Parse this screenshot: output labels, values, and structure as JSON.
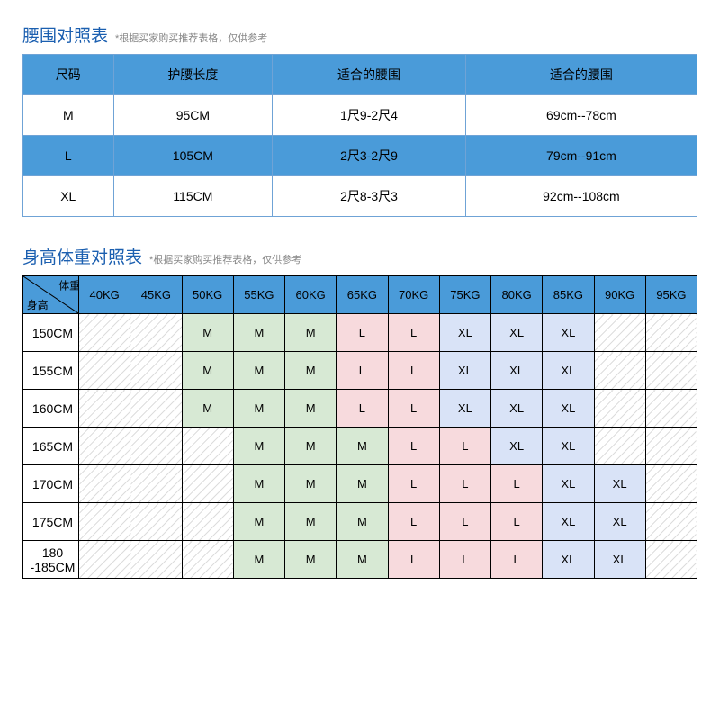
{
  "waist": {
    "title": "腰围对照表",
    "subtitle": "*根据买家购买推荐表格，仅供参考",
    "headers": [
      "尺码",
      "护腰长度",
      "适合的腰围",
      "适合的腰围"
    ],
    "rows": [
      [
        "M",
        "95CM",
        "1尺9-2尺4",
        "69cm--78cm"
      ],
      [
        "L",
        "105CM",
        "2尺3-2尺9",
        "79cm--91cm"
      ],
      [
        "XL",
        "115CM",
        "2尺8-3尺3",
        "92cm--108cm"
      ]
    ],
    "alt_row_index": 1
  },
  "sizechart": {
    "title": "身高体重对照表",
    "subtitle": "*根据买家购买推荐表格，仅供参考",
    "corner_top": "体重",
    "corner_bottom": "身高",
    "weights": [
      "40KG",
      "45KG",
      "50KG",
      "55KG",
      "60KG",
      "65KG",
      "70KG",
      "75KG",
      "80KG",
      "85KG",
      "90KG",
      "95KG"
    ],
    "heights": [
      "150CM",
      "155CM",
      "160CM",
      "165CM",
      "170CM",
      "175CM",
      "180 -185CM"
    ],
    "grid": [
      [
        "",
        "",
        "M",
        "M",
        "M",
        "L",
        "L",
        "XL",
        "XL",
        "XL",
        "",
        ""
      ],
      [
        "",
        "",
        "M",
        "M",
        "M",
        "L",
        "L",
        "XL",
        "XL",
        "XL",
        "",
        ""
      ],
      [
        "",
        "",
        "M",
        "M",
        "M",
        "L",
        "L",
        "XL",
        "XL",
        "XL",
        "",
        ""
      ],
      [
        "",
        "",
        "",
        "M",
        "M",
        "M",
        "L",
        "L",
        "XL",
        "XL",
        "",
        ""
      ],
      [
        "",
        "",
        "",
        "M",
        "M",
        "M",
        "L",
        "L",
        "L",
        "XL",
        "XL",
        ""
      ],
      [
        "",
        "",
        "",
        "M",
        "M",
        "M",
        "L",
        "L",
        "L",
        "XL",
        "XL",
        ""
      ],
      [
        "",
        "",
        "",
        "M",
        "M",
        "M",
        "L",
        "L",
        "L",
        "XL",
        "XL",
        ""
      ]
    ],
    "hatch_cols_per_row": [
      [
        0,
        1,
        10,
        11
      ],
      [
        0,
        1,
        10,
        11
      ],
      [
        0,
        1,
        10,
        11
      ],
      [
        0,
        1,
        2,
        10,
        11
      ],
      [
        0,
        1,
        2,
        11
      ],
      [
        0,
        1,
        2,
        11
      ],
      [
        0,
        1,
        2,
        11
      ]
    ],
    "colors": {
      "M": "#d7e9d4",
      "L": "#f7dadd",
      "XL": "#d9e3f7",
      "header_bg": "#4a9bd9",
      "hatch": "#dddddd"
    }
  }
}
